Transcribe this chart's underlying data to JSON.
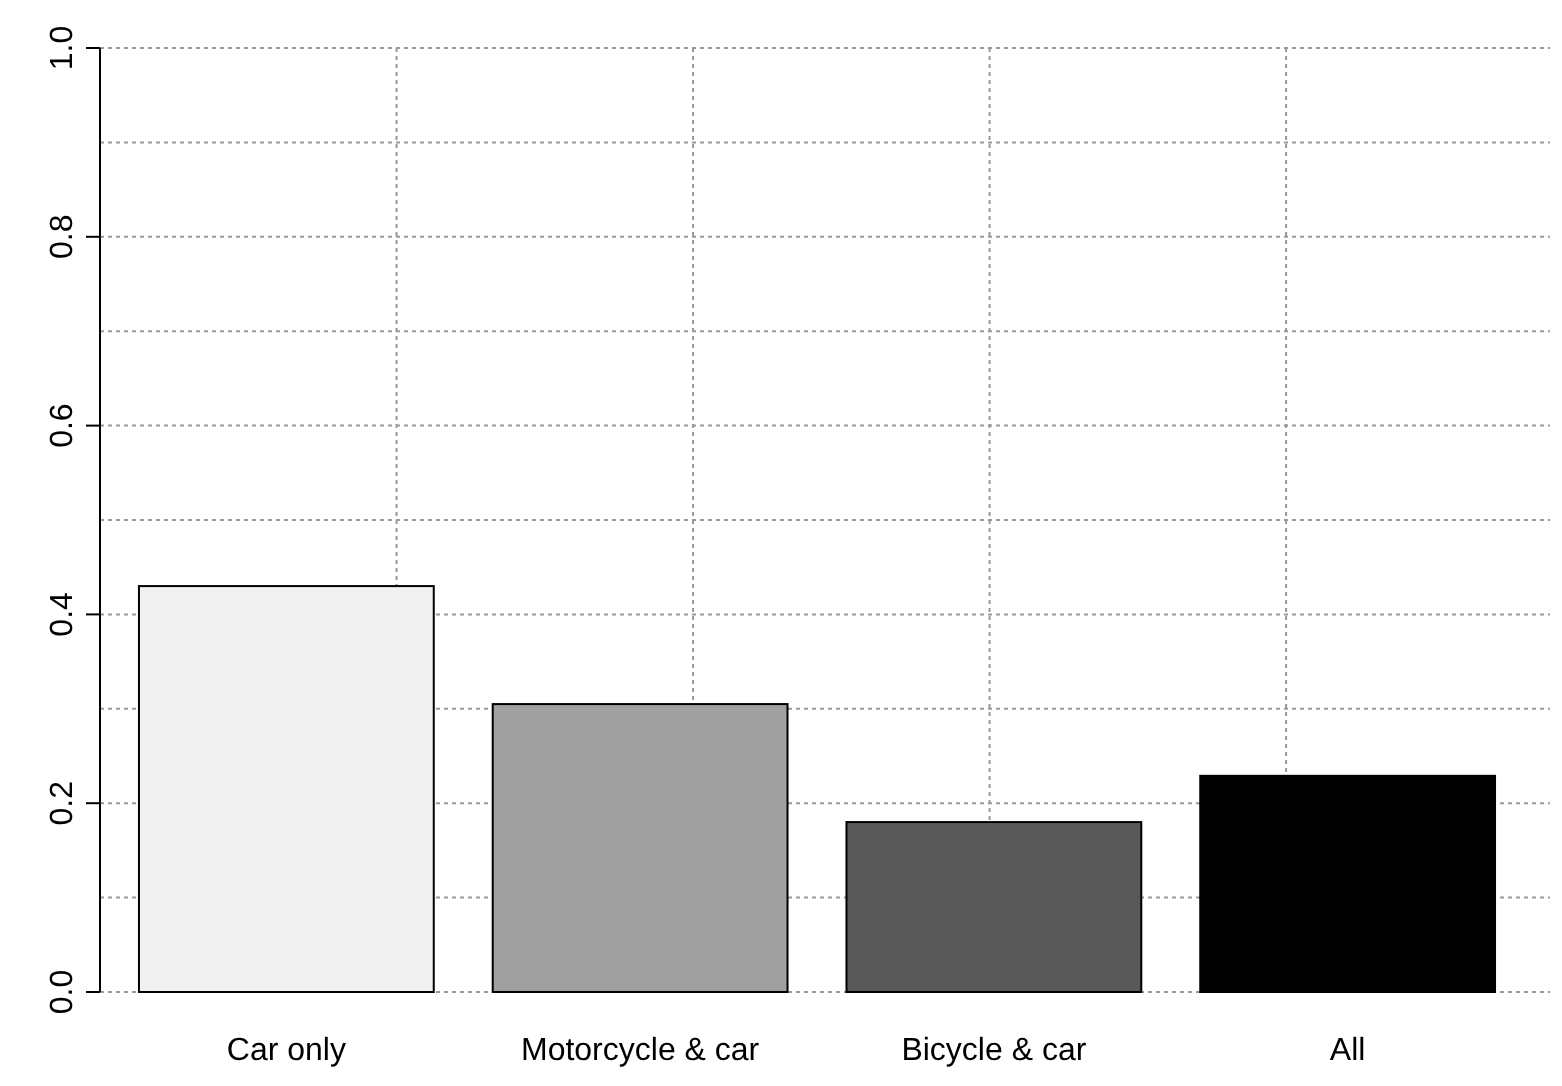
{
  "chart_data": {
    "type": "bar",
    "categories": [
      "Car only",
      "Motorcycle & car",
      "Bicycle & car",
      "All"
    ],
    "values": [
      0.43,
      0.305,
      0.18,
      0.229
    ],
    "colors": [
      "#f0f0f0",
      "#a0a0a0",
      "#595959",
      "#000000"
    ],
    "ylim": [
      0,
      1
    ],
    "yticks": [
      {
        "value": 0,
        "label": "0.0"
      },
      {
        "value": 0.1,
        "label": null
      },
      {
        "value": 0.2,
        "label": "0.2"
      },
      {
        "value": 0.3,
        "label": null
      },
      {
        "value": 0.4,
        "label": "0.4"
      },
      {
        "value": 0.5,
        "label": null
      },
      {
        "value": 0.6,
        "label": "0.6"
      },
      {
        "value": 0.7,
        "label": null
      },
      {
        "value": 0.8,
        "label": "0.8"
      },
      {
        "value": 0.9,
        "label": null
      },
      {
        "value": 1,
        "label": "1.0"
      }
    ],
    "grid": true
  }
}
